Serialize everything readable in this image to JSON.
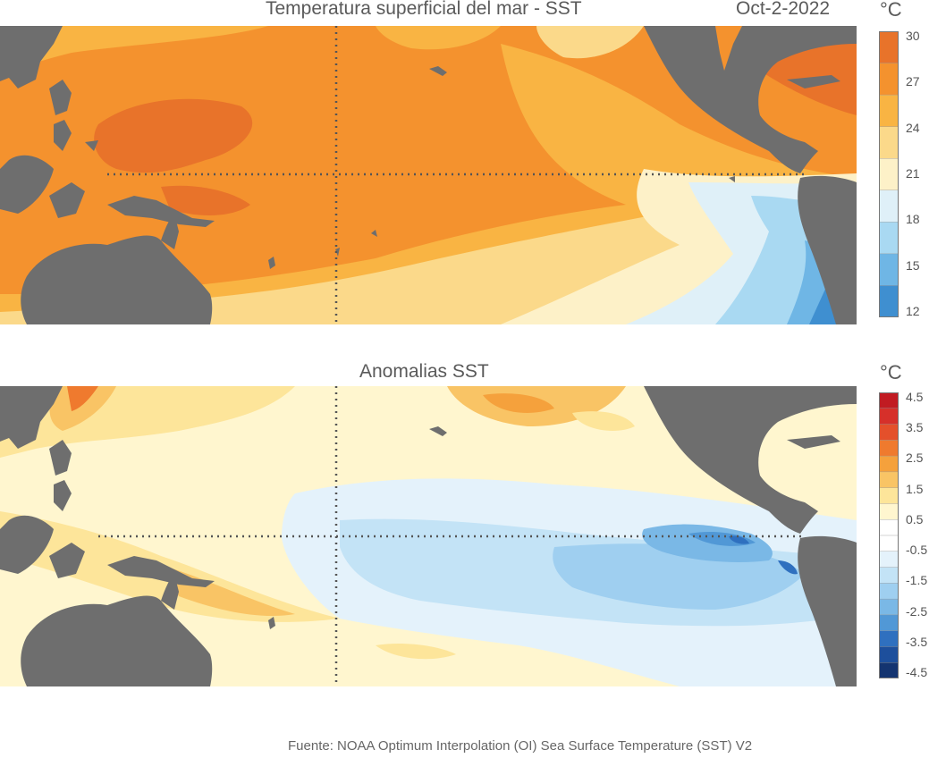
{
  "top": {
    "title": "Temperatura superficial del mar - SST",
    "date": "Oct-2-2022",
    "unit": "°C",
    "ticks": [
      "30",
      "27",
      "24",
      "21",
      "18",
      "15",
      "12"
    ],
    "colors": [
      "#e8732a",
      "#f4922e",
      "#f9b443",
      "#fbd98a",
      "#fdf1c8",
      "#dff0f8",
      "#a9d9f2",
      "#6fb6e5",
      "#3f8fd0"
    ]
  },
  "bottom": {
    "title": "Anomalias SST",
    "unit": "°C",
    "ticks": [
      "4.5",
      "3.5",
      "2.5",
      "1.5",
      "0.5",
      "-0.5",
      "-1.5",
      "-2.5",
      "-3.5",
      "-4.5"
    ],
    "colors": [
      "#c11b22",
      "#d6302a",
      "#e4502b",
      "#ef7a2e",
      "#f5a13c",
      "#f9c465",
      "#fde59a",
      "#fff6cf",
      "#ffffff",
      "#ffffff",
      "#e4f2fb",
      "#c3e3f6",
      "#9fcff0",
      "#7ab8e6",
      "#5198d6",
      "#2f70bf",
      "#1d4f9c",
      "#143470"
    ]
  },
  "source": "Fuente: NOAA Optimum Interpolation (OI) Sea Surface Temperature (SST) V2",
  "land_color": "#6e6e6e",
  "grid_color": "#555555"
}
